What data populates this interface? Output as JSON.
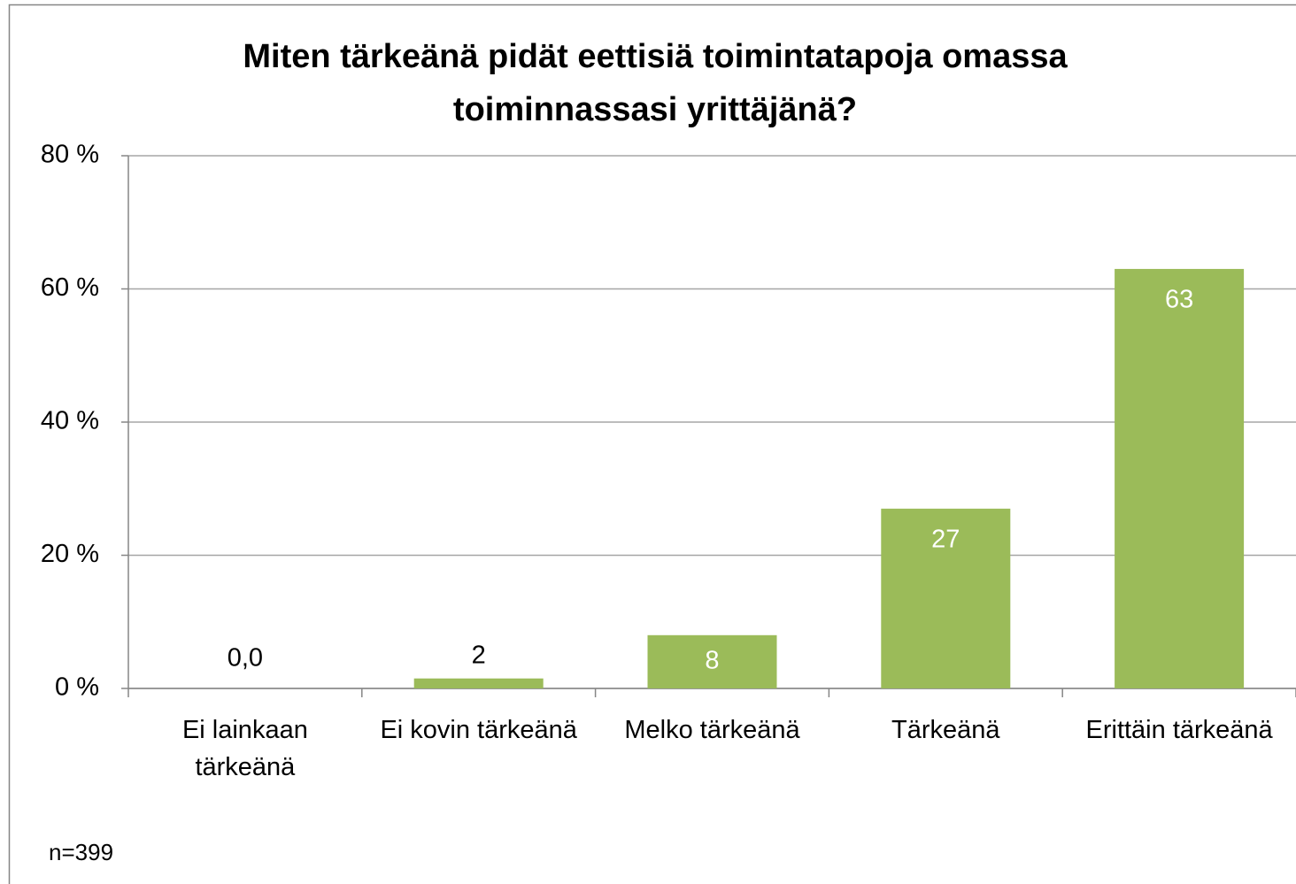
{
  "chart_data": {
    "type": "bar",
    "title": "Miten tärkeänä pidät eettisiä toimintatapoja omassa toiminnassasi yrittäjänä?",
    "categories": [
      "Ei lainkaan tärkeänä",
      "Ei kovin tärkeänä",
      "Melko tärkeänä",
      "Tärkeänä",
      "Erittäin tärkeänä"
    ],
    "values": [
      0,
      1.5,
      8,
      27,
      63
    ],
    "value_labels": [
      "0,0",
      "2",
      "8",
      "27",
      "63"
    ],
    "color": "#9bbb59",
    "ylim": [
      0,
      80
    ],
    "yticks": [
      {
        "value": 0,
        "label": "0 %"
      },
      {
        "value": 20,
        "label": "20 %"
      },
      {
        "value": 40,
        "label": "40 %"
      },
      {
        "value": 60,
        "label": "60 %"
      },
      {
        "value": 80,
        "label": "80 %"
      }
    ],
    "grid": true,
    "note": "n=399"
  }
}
